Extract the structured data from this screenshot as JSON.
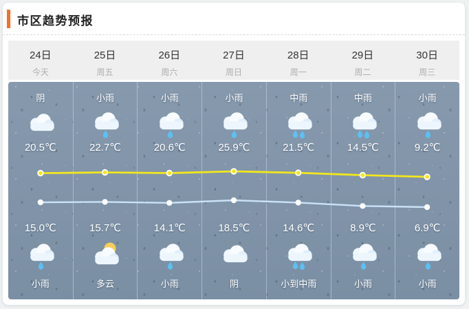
{
  "header": {
    "title": "市区趋势预报"
  },
  "days": [
    {
      "date": "24日",
      "weekday": "今天",
      "day_condition": "阴",
      "day_icon": "cloud",
      "day_temp": "20.5℃",
      "night_temp": "15.0℃",
      "night_icon": "cloud-rain-1",
      "night_condition": "小雨"
    },
    {
      "date": "25日",
      "weekday": "周五",
      "day_condition": "小雨",
      "day_icon": "cloud-rain-1",
      "day_temp": "22.7℃",
      "night_temp": "15.7℃",
      "night_icon": "cloud-moon",
      "night_condition": "多云"
    },
    {
      "date": "26日",
      "weekday": "周六",
      "day_condition": "小雨",
      "day_icon": "cloud-rain-1",
      "day_temp": "20.6℃",
      "night_temp": "14.1℃",
      "night_icon": "cloud-rain-1",
      "night_condition": "小雨"
    },
    {
      "date": "27日",
      "weekday": "周日",
      "day_condition": "小雨",
      "day_icon": "cloud-rain-1",
      "day_temp": "25.9℃",
      "night_temp": "18.5℃",
      "night_icon": "cloud",
      "night_condition": "阴"
    },
    {
      "date": "28日",
      "weekday": "周一",
      "day_condition": "中雨",
      "day_icon": "cloud-rain-2",
      "day_temp": "21.5℃",
      "night_temp": "14.6℃",
      "night_icon": "cloud-rain-2",
      "night_condition": "小到中雨"
    },
    {
      "date": "29日",
      "weekday": "周二",
      "day_condition": "中雨",
      "day_icon": "cloud-rain-2",
      "day_temp": "14.5℃",
      "night_temp": "8.9℃",
      "night_icon": "cloud-rain-1",
      "night_condition": "小雨"
    },
    {
      "date": "30日",
      "weekday": "周三",
      "day_condition": "小雨",
      "day_icon": "cloud-rain-1",
      "day_temp": "9.2℃",
      "night_temp": "6.9℃",
      "night_icon": "cloud-rain-1",
      "night_condition": "小雨"
    }
  ],
  "chart_data": {
    "type": "line",
    "categories": [
      "24日",
      "25日",
      "26日",
      "27日",
      "28日",
      "29日",
      "30日"
    ],
    "series": [
      {
        "name": "day-high-temperature",
        "unit": "℃",
        "color": "#f2e71d",
        "values": [
          20.5,
          22.7,
          20.6,
          25.9,
          21.5,
          14.5,
          9.2
        ]
      },
      {
        "name": "night-low-temperature",
        "unit": "℃",
        "color": "#cbe2f6",
        "values": [
          15.0,
          15.7,
          14.1,
          18.5,
          14.6,
          8.9,
          6.9
        ]
      }
    ],
    "legend": "none",
    "grid": "column-dividers-only"
  },
  "colors": {
    "accent_orange": "#fb6d20",
    "date_row_bg": "#efefef",
    "panel_top": "#8799ad",
    "panel_bottom": "#7b8fa4",
    "line_high": "#f2e71d",
    "line_low": "#cbe2f6"
  }
}
